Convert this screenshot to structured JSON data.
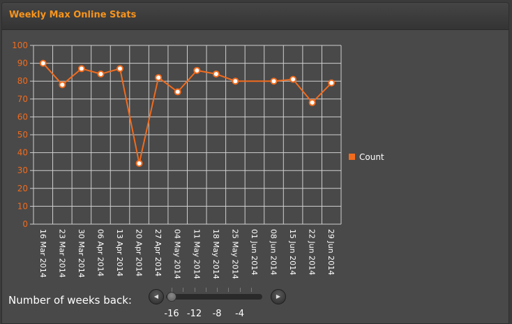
{
  "header": {
    "title": "Weekly Max Online Stats"
  },
  "colors": {
    "accent": "#f7941d",
    "line": "#f26b1d",
    "grid": "#d0d0d0",
    "axis_text": "#ffffff",
    "ytick_text": "#f26b1d"
  },
  "chart_data": {
    "type": "line",
    "title": "",
    "xlabel": "",
    "ylabel": "",
    "ylim": [
      0,
      100
    ],
    "yticks": [
      0,
      10,
      20,
      30,
      40,
      50,
      60,
      70,
      80,
      90,
      100
    ],
    "categories": [
      "16 Mar 2014",
      "23 Mar 2014",
      "30 Mar 2014",
      "06 Apr 2014",
      "13 Apr 2014",
      "20 Apr 2014",
      "27 Apr 2014",
      "04 May 2014",
      "11 May 2014",
      "18 May 2014",
      "25 May 2014",
      "01 Jun 2014",
      "08 Jun 2014",
      "15 Jun 2014",
      "22 Jun 2014",
      "29 Jun 2014"
    ],
    "series": [
      {
        "name": "Count",
        "values": [
          90,
          78,
          87,
          84,
          87,
          34,
          82,
          74,
          86,
          84,
          80,
          null,
          80,
          81,
          68,
          79
        ]
      }
    ],
    "grid": true,
    "legend_position": "right"
  },
  "controls": {
    "weeks_label": "Number of weeks back:",
    "prev_icon": "left-arrow-icon",
    "next_icon": "right-arrow-icon",
    "slider_min": -16,
    "slider_max": -1,
    "slider_value": -16,
    "slider_tick_labels": [
      "-16",
      "-12",
      "-8",
      "-4"
    ]
  }
}
